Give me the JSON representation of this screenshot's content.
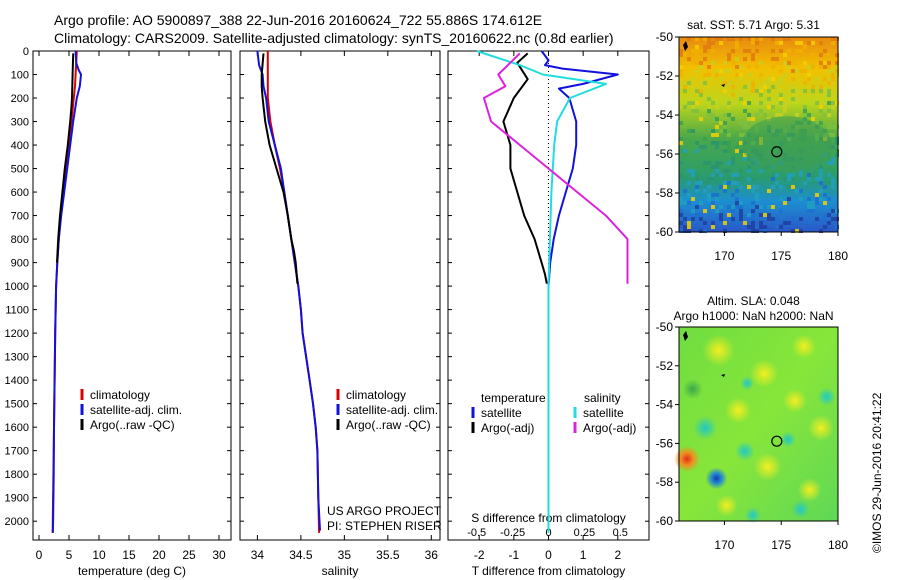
{
  "header": {
    "line1": "Argo profile: AO 5900897_388 22-Jun-2016 20160624_722 55.886S 174.612E",
    "line2": "Climatology: CARS2009. Satellite-adjusted climatology: synTS_20160622.nc (0.8d earlier)"
  },
  "credit": "©IMOS 29-Jun-2016 20:41:22",
  "colors": {
    "climatology": "#dd0000",
    "satellite": "#1111dd",
    "argo": "#000000",
    "sal_satellite": "#22dddd",
    "sal_argo": "#dd22dd"
  },
  "chart_data": [
    {
      "id": "temperature",
      "type": "line",
      "xlabel": "temperature (deg C)",
      "ylabel": "",
      "xlim": [
        -1,
        32
      ],
      "ylim": [
        2080,
        0
      ],
      "xticks": [
        0,
        5,
        10,
        15,
        20,
        25,
        30
      ],
      "xtick_labels": [
        "0",
        "5",
        "10",
        "15",
        "20",
        "25",
        "30"
      ],
      "yticks": [
        0,
        100,
        200,
        300,
        400,
        500,
        600,
        700,
        800,
        900,
        1000,
        1100,
        1200,
        1300,
        1400,
        1500,
        1600,
        1700,
        1800,
        1900,
        2000
      ],
      "ytick_labels": [
        "0",
        "100",
        "200",
        "300",
        "400",
        "500",
        "600",
        "700",
        "800",
        "900",
        "1000",
        "1100",
        "1200",
        "1300",
        "1400",
        "1500",
        "1600",
        "1700",
        "1800",
        "1900",
        "2000"
      ],
      "legend": [
        "climatology",
        "satellite-adj. clim.",
        "Argo(..raw -QC)"
      ],
      "legend_position": "lower-center",
      "series": [
        {
          "name": "climatology",
          "color": "#dd0000",
          "x": [
            6.3,
            6.2,
            6.1,
            6.0,
            5.8,
            5.4,
            4.9,
            4.4,
            4.0,
            3.6,
            3.3,
            3.05,
            2.85,
            2.7,
            2.6,
            2.5,
            2.45,
            2.4,
            2.35,
            2.3,
            2.28
          ],
          "y": [
            0,
            50,
            100,
            150,
            200,
            300,
            400,
            500,
            600,
            700,
            800,
            900,
            1000,
            1200,
            1400,
            1600,
            1700,
            1800,
            1900,
            2000,
            2050
          ]
        },
        {
          "name": "satellite-adj. clim.",
          "color": "#1111dd",
          "x": [
            6.1,
            6.2,
            6.6,
            7.0,
            6.8,
            6.3,
            5.7,
            5.2,
            4.7,
            4.2,
            3.7,
            3.3,
            3.05,
            2.85,
            2.7,
            2.6,
            2.5,
            2.45,
            2.4,
            2.35,
            2.3
          ],
          "y": [
            0,
            50,
            80,
            100,
            150,
            200,
            300,
            400,
            500,
            600,
            700,
            800,
            900,
            1000,
            1200,
            1400,
            1600,
            1800,
            1900,
            2000,
            2050
          ]
        },
        {
          "name": "Argo(..raw -QC)",
          "color": "#000000",
          "x": [
            5.7,
            5.6,
            5.5,
            5.4,
            5.2,
            4.8,
            4.3,
            3.9,
            3.5,
            3.2,
            3.0
          ],
          "y": [
            10,
            100,
            200,
            240,
            300,
            400,
            500,
            600,
            700,
            800,
            900
          ]
        }
      ]
    },
    {
      "id": "salinity",
      "type": "line",
      "xlabel": "salinity",
      "ylabel": "",
      "xlim": [
        33.8,
        36.1
      ],
      "ylim": [
        2080,
        0
      ],
      "xticks": [
        34,
        34.5,
        35,
        35.5,
        36
      ],
      "xtick_labels": [
        "34",
        "34.5",
        "35",
        "35.5",
        "36"
      ],
      "legend": [
        "climatology",
        "satellite-adj. clim.",
        "Argo(..raw -QC)"
      ],
      "legend_position": "lower-right",
      "annotation": [
        "US ARGO PROJECT",
        "PI: STEPHEN RISER"
      ],
      "series": [
        {
          "name": "climatology",
          "color": "#dd0000",
          "x": [
            34.12,
            34.12,
            34.12,
            34.15,
            34.2,
            34.26,
            34.31,
            34.35,
            34.39,
            34.43,
            34.47,
            34.5,
            34.52,
            34.56,
            34.6,
            34.64,
            34.67,
            34.69,
            34.7,
            34.71
          ],
          "y": [
            0,
            100,
            200,
            300,
            400,
            500,
            600,
            700,
            800,
            900,
            1000,
            1100,
            1200,
            1300,
            1400,
            1500,
            1600,
            1700,
            1900,
            2050
          ]
        },
        {
          "name": "satellite-adj. clim.",
          "color": "#1111dd",
          "x": [
            34.0,
            34.02,
            34.06,
            34.07,
            34.1,
            34.13,
            34.2,
            34.27,
            34.31,
            34.35,
            34.39,
            34.43,
            34.47,
            34.5,
            34.52,
            34.56,
            34.6,
            34.64,
            34.67,
            34.69,
            34.7,
            34.72
          ],
          "y": [
            0,
            60,
            100,
            150,
            200,
            300,
            400,
            500,
            600,
            700,
            800,
            900,
            1000,
            1100,
            1200,
            1300,
            1400,
            1500,
            1600,
            1700,
            1900,
            2040
          ]
        },
        {
          "name": "Argo(..raw -QC)",
          "color": "#000000",
          "x": [
            34.07,
            34.05,
            34.05,
            34.06,
            34.09,
            34.14,
            34.22,
            34.3,
            34.35,
            34.39,
            34.42,
            34.44,
            34.46
          ],
          "y": [
            10,
            100,
            150,
            200,
            300,
            400,
            500,
            600,
            700,
            800,
            850,
            900,
            990
          ]
        }
      ]
    },
    {
      "id": "difference",
      "type": "line",
      "xlabel": "T difference from climatology",
      "xlabel_top": "S difference from climatology",
      "ylabel": "",
      "xlim": [
        -2.9,
        2.9
      ],
      "ylim": [
        2080,
        0
      ],
      "xticks": [
        -2,
        -1,
        0,
        1,
        2
      ],
      "xtick_labels": [
        "-2",
        "-1",
        "0",
        "1",
        "2"
      ],
      "s_xticks": [
        -0.5,
        -0.25,
        0,
        0.25,
        0.5
      ],
      "s_xtick_labels": [
        "-0.5",
        "-0.25",
        "0",
        "0.25",
        "0.5"
      ],
      "legend_groups": [
        {
          "title": "temperature",
          "items": [
            "satellite",
            "Argo(-adj)"
          ]
        },
        {
          "title": "salinity",
          "items": [
            "satellite",
            "Argo(-adj)"
          ]
        }
      ],
      "legend_position": "lower-center",
      "series": [
        {
          "name": "temperature satellite",
          "color": "#1111dd",
          "x": [
            -0.2,
            0.0,
            -0.1,
            0.4,
            2.0,
            1.0,
            0.3,
            0.6,
            0.8,
            0.8,
            0.7,
            0.5,
            0.3,
            0.15,
            0.05,
            0.0,
            0.0,
            0.0,
            0.0
          ],
          "y": [
            0,
            40,
            60,
            75,
            100,
            140,
            160,
            200,
            300,
            400,
            500,
            600,
            700,
            800,
            900,
            1000,
            1200,
            1600,
            2000
          ]
        },
        {
          "name": "temperature Argo(-adj)",
          "color": "#000000",
          "x": [
            -0.6,
            -0.9,
            -0.6,
            -1.0,
            -1.3,
            -1.1,
            -1.1,
            -0.9,
            -0.7,
            -0.4,
            -0.2,
            -0.1,
            -0.05
          ],
          "y": [
            10,
            50,
            120,
            200,
            300,
            400,
            500,
            600,
            700,
            800,
            900,
            950,
            990
          ]
        },
        {
          "name": "salinity satellite",
          "color": "#22dddd",
          "x": [
            -0.5,
            -0.2,
            -0.04,
            0.4,
            0.15,
            0.06,
            0.04,
            0.02,
            0.01,
            0.0,
            0.0,
            0.0
          ],
          "y": [
            0,
            60,
            100,
            140,
            200,
            300,
            400,
            600,
            800,
            1000,
            1400,
            2050
          ]
        },
        {
          "name": "salinity Argo(-adj)",
          "color": "#dd22dd",
          "x": [
            -0.2,
            -0.35,
            -0.3,
            -0.45,
            -0.4,
            -0.2,
            0.0,
            0.2,
            0.4,
            0.55,
            0.55
          ],
          "y": [
            10,
            100,
            150,
            200,
            300,
            400,
            500,
            600,
            700,
            800,
            990
          ]
        }
      ]
    },
    {
      "id": "sst-map",
      "type": "heatmap",
      "title": "sat. SST: 5.71  Argo: 5.31",
      "xlim": [
        166,
        180
      ],
      "ylim": [
        -60,
        -50
      ],
      "xticks": [
        170,
        175,
        180
      ],
      "xtick_labels": [
        "170",
        "175",
        "180"
      ],
      "yticks": [
        -50,
        -52,
        -54,
        -56,
        -58,
        -60
      ],
      "ytick_labels": [
        "-50",
        "-52",
        "-54",
        "-56",
        "-58",
        "-60"
      ],
      "marker": {
        "lon": 174.612,
        "lat": -55.886
      }
    },
    {
      "id": "sla-map",
      "type": "heatmap",
      "title": [
        "Altim. SLA: 0.048",
        "Argo h1000: NaN h2000: NaN"
      ],
      "xlim": [
        166,
        180
      ],
      "ylim": [
        -60,
        -50
      ],
      "xticks": [
        170,
        175,
        180
      ],
      "xtick_labels": [
        "170",
        "175",
        "180"
      ],
      "yticks": [
        -50,
        -52,
        -54,
        -56,
        -58,
        -60
      ],
      "ytick_labels": [
        "-50",
        "-52",
        "-54",
        "-56",
        "-58",
        "-60"
      ],
      "marker": {
        "lon": 174.612,
        "lat": -55.886
      }
    }
  ]
}
